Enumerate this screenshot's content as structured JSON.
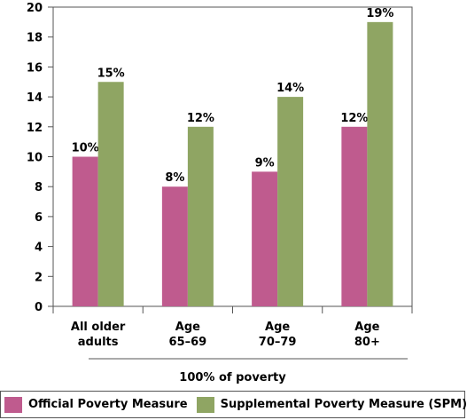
{
  "chart_data": {
    "type": "bar",
    "categories": [
      [
        "All older",
        "adults"
      ],
      [
        "Age",
        "65–69"
      ],
      [
        "Age",
        "70–79"
      ],
      [
        "Age",
        "80+"
      ]
    ],
    "series": [
      {
        "name": "Official Poverty Measure",
        "values": [
          10,
          8,
          9,
          12
        ],
        "labels": [
          "10%",
          "8%",
          "9%",
          "12%"
        ],
        "color": "#bf5b8e"
      },
      {
        "name": "Supplemental Poverty Measure (SPM)",
        "values": [
          15,
          12,
          14,
          19
        ],
        "labels": [
          "15%",
          "12%",
          "14%",
          "19%"
        ],
        "color": "#8fa563"
      }
    ],
    "group_label": "100% of poverty",
    "ylim": [
      0,
      20
    ],
    "yticks": [
      0,
      2,
      4,
      6,
      8,
      10,
      12,
      14,
      16,
      18,
      20
    ],
    "grid": false,
    "legend_position": "bottom"
  }
}
